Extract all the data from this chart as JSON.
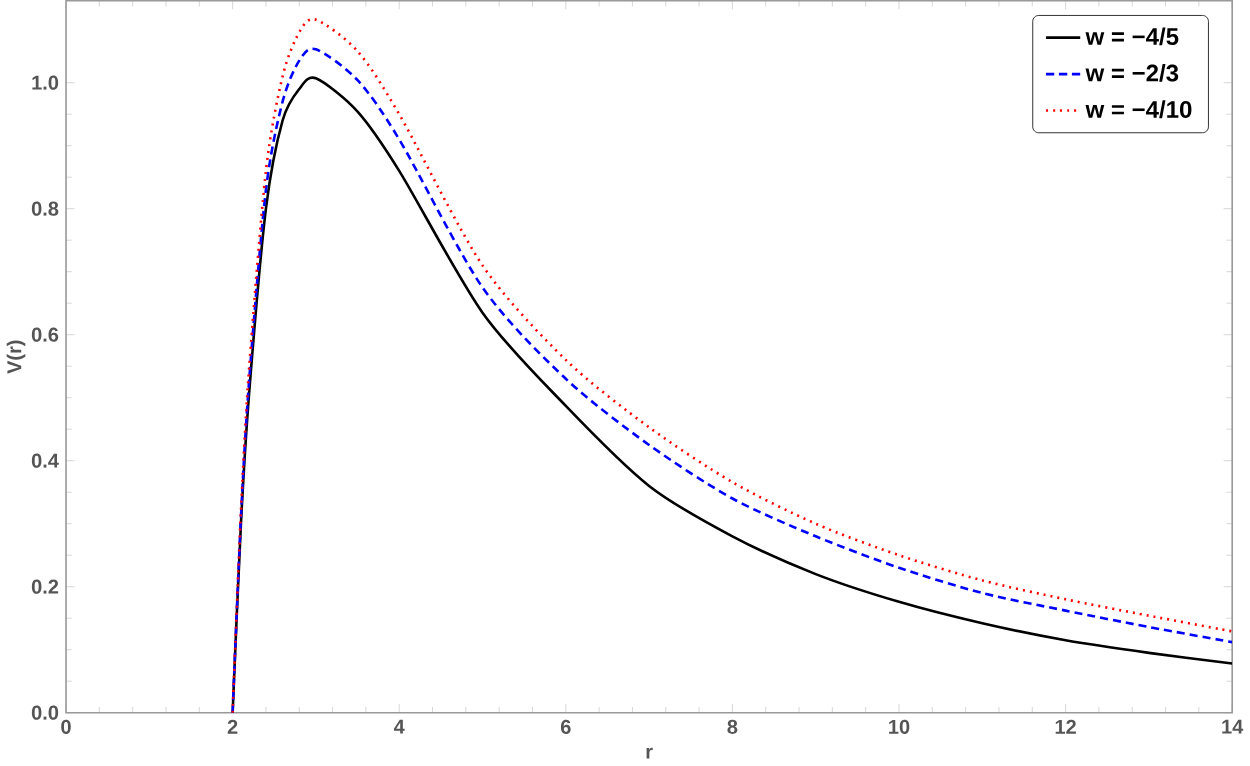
{
  "chart_data": {
    "type": "line",
    "xlabel": "r",
    "ylabel": "V(r)",
    "xlim": [
      0,
      14
    ],
    "ylim": [
      0,
      1.13
    ],
    "xticks": [
      0,
      2,
      4,
      6,
      8,
      10,
      12,
      14
    ],
    "yticks": [
      {
        "value": 0,
        "label": "0.0"
      },
      {
        "value": 0.2,
        "label": "0.2"
      },
      {
        "value": 0.4,
        "label": "0.4"
      },
      {
        "value": 0.6,
        "label": "0.6"
      },
      {
        "value": 0.8,
        "label": "0.8"
      },
      {
        "value": 1.0,
        "label": "1.0"
      }
    ],
    "grid": false,
    "legend": "top right",
    "marker": "none",
    "x": [
      2,
      2.1,
      2.2,
      2.4,
      2.6,
      2.8,
      3,
      3.5,
      4,
      5,
      6,
      7,
      8,
      9,
      10,
      11,
      12,
      13,
      14
    ],
    "series": [
      {
        "name": "w = −4/5",
        "color": "#000000",
        "line_style": "solid",
        "values": [
          0,
          0.3,
          0.51,
          0.8,
          0.94,
          0.99,
          1.007,
          0.954,
          0.86,
          0.635,
          0.487,
          0.36,
          0.28,
          0.22,
          0.176,
          0.142,
          0.115,
          0.095,
          0.078
        ]
      },
      {
        "name": "w = −2/3",
        "color": "#0000ff",
        "line_style": "dashed",
        "values": [
          0,
          0.31,
          0.53,
          0.83,
          0.97,
          1.035,
          1.053,
          1.004,
          0.91,
          0.675,
          0.53,
          0.425,
          0.34,
          0.28,
          0.23,
          0.19,
          0.162,
          0.136,
          0.112
        ]
      },
      {
        "name": "w = −4/10",
        "color": "#ff0000",
        "line_style": "dotted",
        "values": [
          0,
          0.32,
          0.55,
          0.86,
          1.01,
          1.08,
          1.1,
          1.05,
          0.95,
          0.71,
          0.56,
          0.453,
          0.366,
          0.3,
          0.25,
          0.21,
          0.18,
          0.154,
          0.129
        ]
      }
    ]
  }
}
